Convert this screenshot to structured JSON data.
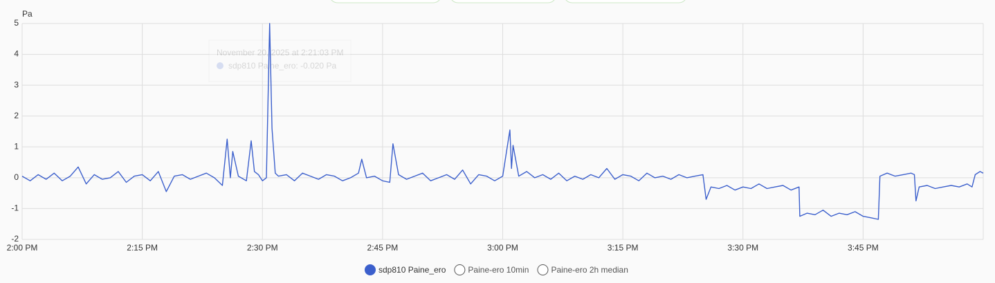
{
  "chart_data": {
    "type": "line",
    "y_label": "Pa",
    "x": [
      0,
      1,
      2,
      3,
      4,
      5,
      6,
      7,
      8,
      9,
      10,
      11,
      12,
      13,
      14,
      15,
      16,
      17,
      18,
      19,
      20,
      21,
      22,
      23,
      24,
      25,
      25.6,
      26,
      26.3,
      27,
      28,
      28.6,
      29,
      29.5,
      30,
      30.5,
      30.9,
      31.2,
      31.6,
      32,
      33,
      34,
      35,
      36,
      37,
      38,
      39,
      40,
      41,
      42,
      42.4,
      43,
      44,
      45,
      45.9,
      46.3,
      47,
      48,
      49,
      50,
      51,
      52,
      53,
      54,
      55,
      56,
      57,
      58,
      59,
      60,
      60.9,
      61.1,
      61.3,
      62,
      63,
      64,
      65,
      66,
      67,
      68,
      69,
      70,
      71,
      72,
      73,
      74,
      75,
      76,
      77,
      78,
      79,
      80,
      81,
      82,
      83,
      84,
      85,
      85.4,
      86,
      87,
      88,
      89,
      90,
      91,
      92,
      93,
      94,
      95,
      96,
      97,
      97.1,
      98,
      99,
      100,
      101,
      102,
      103,
      104,
      105,
      106,
      106.9,
      107.1,
      108,
      109,
      110,
      111,
      111.4,
      111.6,
      112,
      113,
      114,
      115,
      116,
      117,
      118,
      118.6,
      119,
      119.6,
      120
    ],
    "series": [
      {
        "name": "sdp810 Paine_ero",
        "color": "#3b5fcc",
        "values": [
          0.05,
          -0.1,
          0.1,
          -0.05,
          0.15,
          -0.1,
          0.05,
          0.35,
          -0.2,
          0.1,
          -0.05,
          0.0,
          0.2,
          -0.15,
          0.05,
          0.1,
          -0.1,
          0.2,
          -0.45,
          0.05,
          0.1,
          -0.05,
          0.05,
          0.15,
          0.0,
          -0.25,
          1.25,
          0.0,
          0.85,
          0.05,
          -0.1,
          1.2,
          0.2,
          0.1,
          -0.1,
          0.0,
          5.0,
          1.6,
          0.15,
          0.05,
          0.1,
          -0.1,
          0.15,
          0.05,
          -0.05,
          0.1,
          0.05,
          -0.1,
          0.0,
          0.15,
          0.6,
          0.0,
          0.05,
          -0.1,
          -0.15,
          1.1,
          0.1,
          -0.05,
          0.05,
          0.15,
          -0.1,
          0.0,
          0.1,
          -0.05,
          0.25,
          -0.2,
          0.1,
          0.05,
          -0.1,
          0.05,
          1.55,
          0.3,
          1.05,
          0.05,
          0.2,
          0.0,
          0.1,
          -0.05,
          0.15,
          -0.1,
          0.05,
          -0.05,
          0.1,
          0.0,
          0.3,
          -0.05,
          0.1,
          0.05,
          -0.1,
          0.15,
          0.0,
          0.05,
          -0.05,
          0.1,
          0.0,
          0.05,
          0.1,
          -0.7,
          -0.3,
          -0.35,
          -0.25,
          -0.4,
          -0.3,
          -0.35,
          -0.2,
          -0.35,
          -0.3,
          -0.25,
          -0.4,
          -0.3,
          -1.25,
          -1.15,
          -1.2,
          -1.05,
          -1.25,
          -1.15,
          -1.2,
          -1.1,
          -1.25,
          -1.3,
          -1.35,
          0.05,
          0.15,
          0.05,
          0.1,
          0.15,
          0.1,
          -0.75,
          -0.3,
          -0.25,
          -0.35,
          -0.3,
          -0.25,
          -0.3,
          -0.2,
          -0.3,
          0.1,
          0.2,
          0.15
        ]
      }
    ],
    "hidden_series": [
      {
        "name": "Paine-ero 10min"
      },
      {
        "name": "Paine-ero 2h median"
      }
    ],
    "xlim": [
      0,
      120
    ],
    "xticks": [
      {
        "value": 0,
        "label": "2:00 PM"
      },
      {
        "value": 15,
        "label": "2:15 PM"
      },
      {
        "value": 30,
        "label": "2:30 PM"
      },
      {
        "value": 45,
        "label": "2:45 PM"
      },
      {
        "value": 60,
        "label": "3:00 PM"
      },
      {
        "value": 75,
        "label": "3:15 PM"
      },
      {
        "value": 90,
        "label": "3:30 PM"
      },
      {
        "value": 105,
        "label": "3:45 PM"
      }
    ],
    "ylim": [
      -2,
      5
    ],
    "yticks": [
      -2,
      -1,
      0,
      1,
      2,
      3,
      4,
      5
    ],
    "grid": true,
    "tooltip": {
      "title": "November 20, 2025 at 2:21:03 PM",
      "text": "sdp810 Paine_ero: -0.020 Pa"
    }
  }
}
